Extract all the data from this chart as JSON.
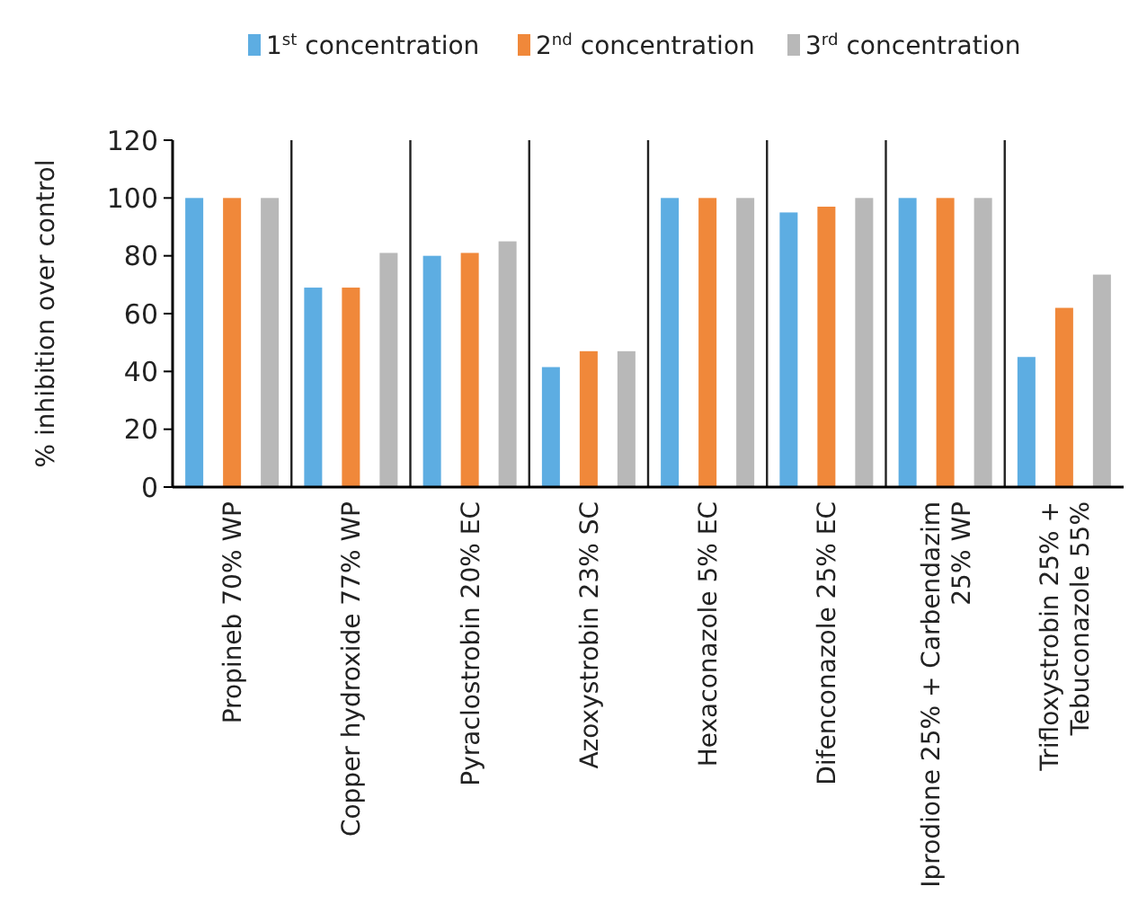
{
  "chart_data": {
    "type": "bar",
    "ylabel": "% inhibition over control",
    "categories": [
      "Propineb 70% WP",
      "Copper hydroxide 77% WP",
      "Pyraclostrobin 20% EC",
      "Azoxystrobin 23% SC",
      "Hexaconazole 5% EC",
      "Difenconazole 25% EC",
      "Iprodione 25% + Carbendazim 25% WP",
      "Trifloxystrobin 25% + Tebuconazole 55%"
    ],
    "series": [
      {
        "name": "1$^{st}$ concentration",
        "color": "#5dade2",
        "values": [
          100,
          69,
          80,
          41.5,
          100,
          95,
          100,
          45
        ]
      },
      {
        "name": "2$^{nd}$ concentration",
        "color": "#f0883a",
        "values": [
          100,
          69,
          81,
          47,
          100,
          97,
          100,
          62
        ]
      },
      {
        "name": "3$^{rd}$ concentration",
        "color": "#b8b8b8",
        "values": [
          100,
          81,
          85,
          47,
          100,
          100,
          100,
          73.5
        ]
      }
    ],
    "ylim": [
      0,
      120
    ],
    "yticks": [
      0,
      20,
      40,
      60,
      80,
      100,
      120
    ],
    "grid": "x",
    "legend": "top"
  }
}
